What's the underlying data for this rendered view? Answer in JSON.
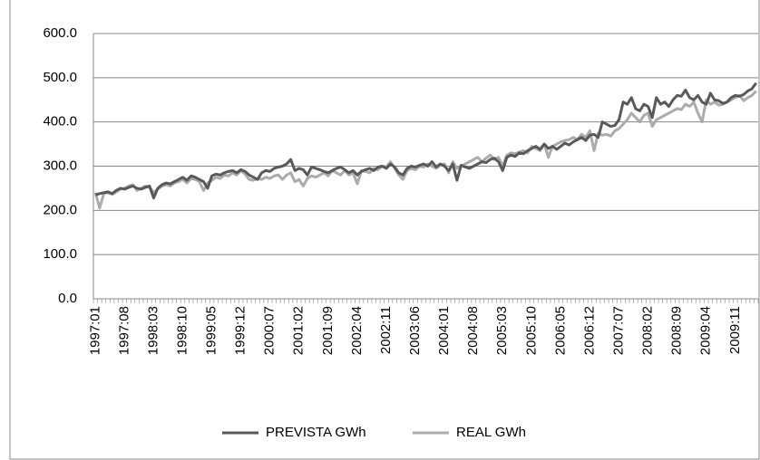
{
  "chart_data": {
    "type": "line",
    "categories": [
      "1997:01",
      null,
      null,
      null,
      null,
      null,
      null,
      "1997:08",
      null,
      null,
      null,
      null,
      null,
      null,
      "1998:03",
      null,
      null,
      null,
      null,
      null,
      null,
      "1998:10",
      null,
      null,
      null,
      null,
      null,
      null,
      "1999:05",
      null,
      null,
      null,
      null,
      null,
      null,
      "1999:12",
      null,
      null,
      null,
      null,
      null,
      null,
      "2000:07",
      null,
      null,
      null,
      null,
      null,
      null,
      "2001:02",
      null,
      null,
      null,
      null,
      null,
      null,
      "2001:09",
      null,
      null,
      null,
      null,
      null,
      null,
      "2002:04",
      null,
      null,
      null,
      null,
      null,
      null,
      "2002:11",
      null,
      null,
      null,
      null,
      null,
      null,
      "2003:06",
      null,
      null,
      null,
      null,
      null,
      null,
      "2004:01",
      null,
      null,
      null,
      null,
      null,
      null,
      "2004:08",
      null,
      null,
      null,
      null,
      null,
      null,
      "2005:03",
      null,
      null,
      null,
      null,
      null,
      null,
      "2005:10",
      null,
      null,
      null,
      null,
      null,
      null,
      "2006:05",
      null,
      null,
      null,
      null,
      null,
      null,
      "2006:12",
      null,
      null,
      null,
      null,
      null,
      null,
      "2007:07",
      null,
      null,
      null,
      null,
      null,
      null,
      "2008:02",
      null,
      null,
      null,
      null,
      null,
      null,
      "2008:09",
      null,
      null,
      null,
      null,
      null,
      null,
      "2009:04",
      null,
      null,
      null,
      null,
      null,
      null,
      "2009:11",
      null,
      null,
      null,
      null,
      null
    ],
    "series": [
      {
        "name": "PREVISTA  GWh",
        "color": "#595959",
        "values": [
          235,
          238,
          240,
          242,
          238,
          245,
          250,
          248,
          252,
          255,
          250,
          248,
          252,
          255,
          228,
          250,
          258,
          262,
          260,
          265,
          270,
          275,
          268,
          278,
          275,
          270,
          265,
          250,
          278,
          282,
          280,
          285,
          288,
          290,
          285,
          292,
          288,
          280,
          275,
          270,
          285,
          290,
          288,
          295,
          298,
          300,
          305,
          315,
          290,
          295,
          292,
          280,
          298,
          295,
          292,
          288,
          285,
          290,
          295,
          298,
          292,
          285,
          290,
          280,
          288,
          292,
          295,
          290,
          298,
          300,
          295,
          305,
          298,
          285,
          280,
          295,
          300,
          298,
          302,
          305,
          300,
          310,
          298,
          305,
          300,
          290,
          305,
          268,
          302,
          298,
          295,
          300,
          305,
          310,
          308,
          315,
          318,
          310,
          290,
          320,
          325,
          322,
          330,
          328,
          335,
          340,
          345,
          338,
          350,
          340,
          345,
          338,
          345,
          352,
          348,
          355,
          360,
          365,
          358,
          370,
          372,
          365,
          400,
          395,
          390,
          392,
          405,
          445,
          440,
          455,
          430,
          425,
          440,
          435,
          410,
          455,
          440,
          445,
          435,
          450,
          460,
          458,
          472,
          455,
          450,
          460,
          445,
          440,
          465,
          450,
          448,
          442,
          445,
          455,
          460,
          458,
          462,
          470,
          475,
          488
        ]
      },
      {
        "name": "REAL GWh",
        "color": "#ababab",
        "values": [
          240,
          205,
          238,
          240,
          236,
          242,
          248,
          250,
          255,
          258,
          245,
          250,
          255,
          252,
          240,
          248,
          255,
          258,
          255,
          262,
          265,
          270,
          262,
          272,
          270,
          265,
          245,
          262,
          268,
          275,
          272,
          280,
          278,
          285,
          280,
          290,
          282,
          270,
          268,
          272,
          270,
          275,
          272,
          278,
          280,
          270,
          280,
          285,
          265,
          270,
          255,
          272,
          278,
          275,
          280,
          285,
          278,
          290,
          285,
          280,
          290,
          280,
          285,
          260,
          290,
          288,
          285,
          295,
          292,
          300,
          298,
          310,
          295,
          280,
          270,
          290,
          295,
          292,
          300,
          298,
          305,
          300,
          295,
          302,
          305,
          285,
          310,
          295,
          300,
          305,
          310,
          315,
          320,
          310,
          318,
          325,
          315,
          320,
          300,
          325,
          330,
          328,
          332,
          335,
          330,
          345,
          340,
          335,
          350,
          320,
          345,
          350,
          355,
          358,
          360,
          365,
          360,
          372,
          365,
          380,
          335,
          375,
          370,
          372,
          368,
          380,
          385,
          395,
          405,
          420,
          410,
          400,
          415,
          420,
          390,
          405,
          410,
          415,
          420,
          425,
          430,
          428,
          440,
          435,
          445,
          420,
          400,
          450,
          440,
          445,
          438,
          440,
          445,
          450,
          455,
          460,
          448,
          455,
          460,
          470
        ]
      }
    ],
    "ylim": [
      0,
      600
    ],
    "yticks": [
      {
        "value": 0,
        "label": "0.0"
      },
      {
        "value": 100,
        "label": "100.0"
      },
      {
        "value": 200,
        "label": "200.0"
      },
      {
        "value": 300,
        "label": "300.0"
      },
      {
        "value": 400,
        "label": "400.0"
      },
      {
        "value": 500,
        "label": "500.0"
      },
      {
        "value": 600,
        "label": "600.0"
      }
    ],
    "grid": true,
    "legend": "bottom"
  }
}
